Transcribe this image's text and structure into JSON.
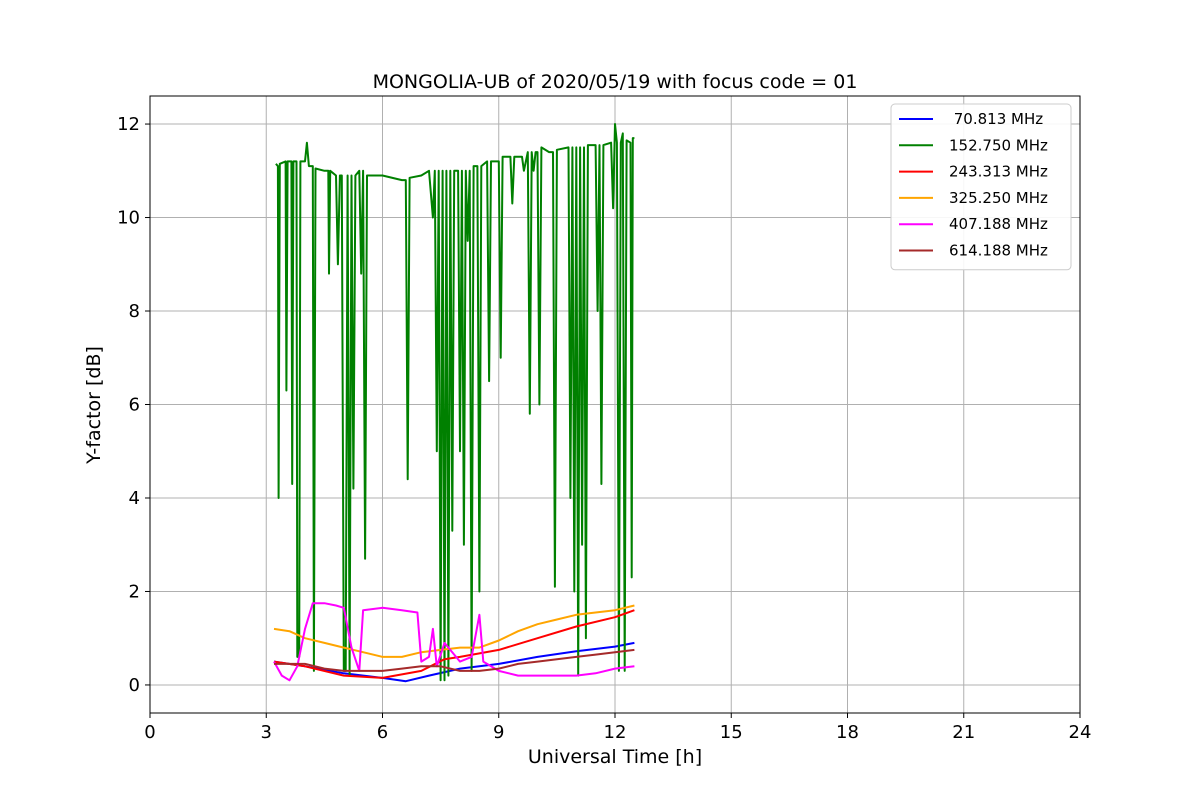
{
  "chart_data": {
    "type": "line",
    "title": "MONGOLIA-UB of 2020/05/19 with focus code = 01",
    "xlabel": "Universal Time [h]",
    "ylabel": "Y-factor [dB]",
    "xlim": [
      0,
      24
    ],
    "ylim": [
      -0.6,
      12.6
    ],
    "xticks": [
      0,
      3,
      6,
      9,
      12,
      15,
      18,
      21,
      24
    ],
    "yticks": [
      0,
      2,
      4,
      6,
      8,
      10,
      12
    ],
    "grid": true,
    "legend_position": "top-right",
    "series": [
      {
        "name": " 70.813 MHz",
        "color": "#0000ff",
        "points": [
          [
            3.2,
            0.5
          ],
          [
            4.0,
            0.4
          ],
          [
            5.0,
            0.25
          ],
          [
            6.0,
            0.15
          ],
          [
            6.6,
            0.08
          ],
          [
            7.2,
            0.2
          ],
          [
            8.0,
            0.35
          ],
          [
            9.0,
            0.45
          ],
          [
            10.0,
            0.6
          ],
          [
            11.0,
            0.72
          ],
          [
            12.0,
            0.82
          ],
          [
            12.5,
            0.9
          ]
        ]
      },
      {
        "name": "152.750 MHz",
        "color": "#008000",
        "points": [
          [
            3.25,
            11.15
          ],
          [
            3.3,
            11.1
          ],
          [
            3.32,
            4.0
          ],
          [
            3.35,
            11.15
          ],
          [
            3.5,
            11.2
          ],
          [
            3.52,
            6.3
          ],
          [
            3.55,
            11.2
          ],
          [
            3.65,
            11.2
          ],
          [
            3.67,
            4.3
          ],
          [
            3.7,
            11.2
          ],
          [
            3.78,
            11.2
          ],
          [
            3.8,
            0.6
          ],
          [
            3.85,
            0.6
          ],
          [
            3.88,
            11.2
          ],
          [
            4.0,
            11.2
          ],
          [
            4.05,
            11.6
          ],
          [
            4.1,
            11.1
          ],
          [
            4.2,
            11.1
          ],
          [
            4.23,
            0.3
          ],
          [
            4.27,
            11.05
          ],
          [
            4.5,
            11.0
          ],
          [
            4.6,
            11.0
          ],
          [
            4.62,
            8.8
          ],
          [
            4.65,
            11.0
          ],
          [
            4.8,
            10.9
          ],
          [
            4.85,
            9.0
          ],
          [
            4.9,
            10.9
          ],
          [
            4.95,
            10.9
          ],
          [
            5.0,
            0.3
          ],
          [
            5.05,
            0.3
          ],
          [
            5.1,
            10.9
          ],
          [
            5.15,
            0.2
          ],
          [
            5.2,
            10.9
          ],
          [
            5.25,
            4.2
          ],
          [
            5.3,
            10.9
          ],
          [
            5.4,
            11.0
          ],
          [
            5.45,
            8.8
          ],
          [
            5.5,
            11.0
          ],
          [
            5.55,
            2.7
          ],
          [
            5.6,
            10.9
          ],
          [
            6.0,
            10.9
          ],
          [
            6.5,
            10.8
          ],
          [
            6.6,
            10.8
          ],
          [
            6.65,
            4.4
          ],
          [
            6.7,
            10.85
          ],
          [
            7.0,
            10.9
          ],
          [
            7.2,
            11.0
          ],
          [
            7.3,
            10.0
          ],
          [
            7.35,
            11.0
          ],
          [
            7.4,
            5.0
          ],
          [
            7.45,
            11.0
          ],
          [
            7.5,
            0.1
          ],
          [
            7.55,
            11.0
          ],
          [
            7.6,
            0.1
          ],
          [
            7.65,
            11.0
          ],
          [
            7.7,
            0.2
          ],
          [
            7.75,
            11.0
          ],
          [
            7.8,
            3.3
          ],
          [
            7.85,
            11.0
          ],
          [
            7.95,
            11.0
          ],
          [
            8.0,
            5.0
          ],
          [
            8.05,
            11.0
          ],
          [
            8.1,
            3.0
          ],
          [
            8.15,
            11.0
          ],
          [
            8.2,
            9.5
          ],
          [
            8.25,
            11.0
          ],
          [
            8.3,
            0.3
          ],
          [
            8.35,
            11.1
          ],
          [
            8.45,
            11.1
          ],
          [
            8.5,
            2.0
          ],
          [
            8.55,
            11.1
          ],
          [
            8.7,
            11.2
          ],
          [
            8.75,
            6.5
          ],
          [
            8.8,
            11.2
          ],
          [
            9.0,
            11.2
          ],
          [
            9.05,
            7.0
          ],
          [
            9.1,
            11.3
          ],
          [
            9.3,
            11.3
          ],
          [
            9.35,
            10.3
          ],
          [
            9.4,
            11.3
          ],
          [
            9.6,
            11.3
          ],
          [
            9.65,
            11.0
          ],
          [
            9.75,
            11.4
          ],
          [
            9.8,
            5.8
          ],
          [
            9.85,
            11.4
          ],
          [
            9.9,
            11.0
          ],
          [
            9.95,
            11.4
          ],
          [
            10.0,
            11.4
          ],
          [
            10.05,
            6.0
          ],
          [
            10.1,
            11.5
          ],
          [
            10.3,
            11.4
          ],
          [
            10.4,
            11.4
          ],
          [
            10.45,
            2.1
          ],
          [
            10.5,
            11.45
          ],
          [
            10.8,
            11.5
          ],
          [
            10.85,
            4.0
          ],
          [
            10.9,
            11.5
          ],
          [
            10.95,
            2.0
          ],
          [
            11.0,
            11.5
          ],
          [
            11.05,
            0.2
          ],
          [
            11.1,
            11.5
          ],
          [
            11.15,
            3.0
          ],
          [
            11.2,
            11.5
          ],
          [
            11.25,
            1.0
          ],
          [
            11.3,
            11.55
          ],
          [
            11.5,
            11.55
          ],
          [
            11.55,
            8.0
          ],
          [
            11.6,
            11.55
          ],
          [
            11.65,
            4.3
          ],
          [
            11.7,
            11.55
          ],
          [
            11.9,
            11.6
          ],
          [
            11.95,
            10.2
          ],
          [
            12.0,
            12.0
          ],
          [
            12.05,
            11.6
          ],
          [
            12.1,
            0.3
          ],
          [
            12.15,
            11.6
          ],
          [
            12.2,
            11.8
          ],
          [
            12.25,
            0.3
          ],
          [
            12.3,
            11.65
          ],
          [
            12.4,
            11.6
          ],
          [
            12.43,
            2.3
          ],
          [
            12.46,
            11.7
          ],
          [
            12.5,
            11.7
          ]
        ]
      },
      {
        "name": "243.313 MHz",
        "color": "#ff0000",
        "points": [
          [
            3.2,
            0.5
          ],
          [
            4.0,
            0.4
          ],
          [
            5.0,
            0.2
          ],
          [
            6.0,
            0.15
          ],
          [
            7.0,
            0.3
          ],
          [
            7.6,
            0.55
          ],
          [
            8.0,
            0.6
          ],
          [
            9.0,
            0.75
          ],
          [
            10.0,
            1.0
          ],
          [
            11.0,
            1.25
          ],
          [
            12.0,
            1.45
          ],
          [
            12.5,
            1.6
          ]
        ]
      },
      {
        "name": "325.250 MHz",
        "color": "#ffa500",
        "points": [
          [
            3.2,
            1.2
          ],
          [
            3.6,
            1.15
          ],
          [
            4.0,
            1.0
          ],
          [
            4.5,
            0.9
          ],
          [
            5.0,
            0.8
          ],
          [
            5.5,
            0.7
          ],
          [
            6.0,
            0.6
          ],
          [
            6.5,
            0.6
          ],
          [
            7.0,
            0.7
          ],
          [
            7.5,
            0.75
          ],
          [
            8.0,
            0.8
          ],
          [
            8.5,
            0.8
          ],
          [
            9.0,
            0.95
          ],
          [
            9.5,
            1.15
          ],
          [
            10.0,
            1.3
          ],
          [
            10.5,
            1.4
          ],
          [
            11.0,
            1.5
          ],
          [
            11.5,
            1.55
          ],
          [
            12.0,
            1.6
          ],
          [
            12.5,
            1.7
          ]
        ]
      },
      {
        "name": "407.188 MHz",
        "color": "#ff00ff",
        "points": [
          [
            3.2,
            0.5
          ],
          [
            3.4,
            0.2
          ],
          [
            3.6,
            0.1
          ],
          [
            3.8,
            0.4
          ],
          [
            4.0,
            1.2
          ],
          [
            4.2,
            1.75
          ],
          [
            4.5,
            1.75
          ],
          [
            4.8,
            1.7
          ],
          [
            5.0,
            1.65
          ],
          [
            5.2,
            0.8
          ],
          [
            5.4,
            0.3
          ],
          [
            5.5,
            1.6
          ],
          [
            6.0,
            1.65
          ],
          [
            6.5,
            1.6
          ],
          [
            6.9,
            1.55
          ],
          [
            7.0,
            0.5
          ],
          [
            7.2,
            0.6
          ],
          [
            7.3,
            1.2
          ],
          [
            7.4,
            0.4
          ],
          [
            7.6,
            0.9
          ],
          [
            8.0,
            0.5
          ],
          [
            8.3,
            0.6
          ],
          [
            8.5,
            1.5
          ],
          [
            8.6,
            0.5
          ],
          [
            9.0,
            0.3
          ],
          [
            9.5,
            0.2
          ],
          [
            10.0,
            0.2
          ],
          [
            10.5,
            0.2
          ],
          [
            11.0,
            0.2
          ],
          [
            11.5,
            0.25
          ],
          [
            12.0,
            0.35
          ],
          [
            12.5,
            0.4
          ]
        ]
      },
      {
        "name": "614.188 MHz",
        "color": "#a52a2a",
        "points": [
          [
            3.2,
            0.45
          ],
          [
            4.0,
            0.45
          ],
          [
            4.5,
            0.35
          ],
          [
            5.0,
            0.3
          ],
          [
            5.5,
            0.3
          ],
          [
            6.0,
            0.3
          ],
          [
            6.5,
            0.35
          ],
          [
            7.0,
            0.4
          ],
          [
            7.5,
            0.4
          ],
          [
            8.0,
            0.3
          ],
          [
            8.5,
            0.3
          ],
          [
            9.0,
            0.35
          ],
          [
            9.5,
            0.45
          ],
          [
            10.0,
            0.5
          ],
          [
            10.5,
            0.55
          ],
          [
            11.0,
            0.6
          ],
          [
            11.5,
            0.65
          ],
          [
            12.0,
            0.7
          ],
          [
            12.5,
            0.75
          ]
        ]
      }
    ]
  }
}
